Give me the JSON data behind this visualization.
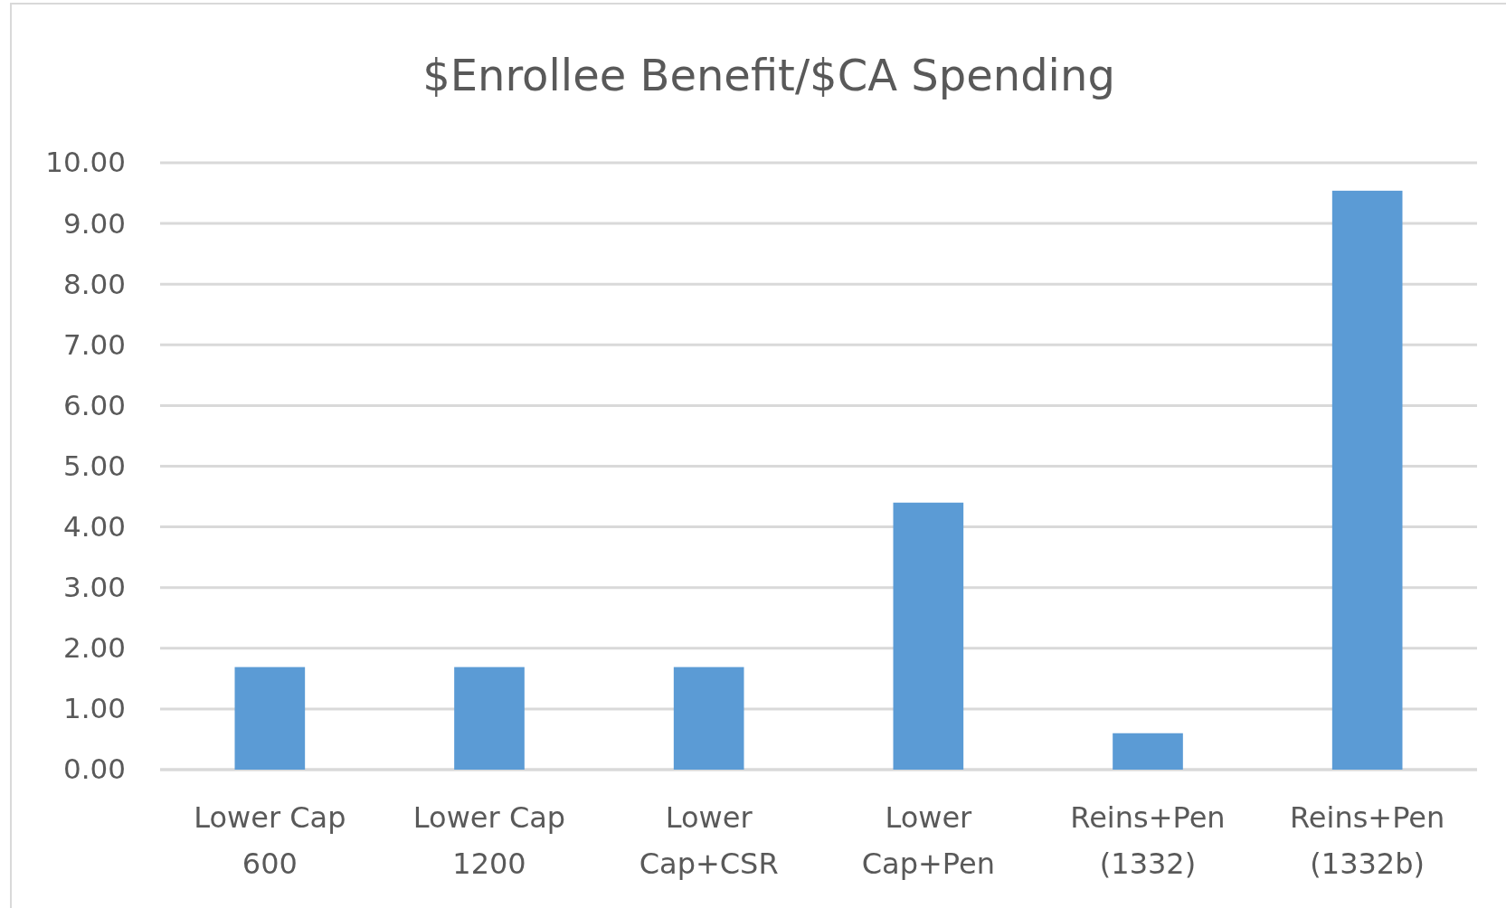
{
  "chart_data": {
    "type": "bar",
    "title": "$Enrollee Benefit/$CA Spending",
    "categories": [
      "Lower Cap 600",
      "Lower Cap 1200",
      "Lower Cap+CSR",
      "Lower Cap+Pen",
      "Reins+Pen (1332)",
      "Reins+Pen (1332b)"
    ],
    "values": [
      1.69,
      1.69,
      1.69,
      4.4,
      0.6,
      9.54
    ],
    "color": "#5b9bd5",
    "ylim": [
      0,
      10
    ],
    "yticks": [
      {
        "value": 0,
        "label": "0.00"
      },
      {
        "value": 1,
        "label": "1.00"
      },
      {
        "value": 2,
        "label": "2.00"
      },
      {
        "value": 3,
        "label": "3.00"
      },
      {
        "value": 4,
        "label": "4.00"
      },
      {
        "value": 5,
        "label": "5.00"
      },
      {
        "value": 6,
        "label": "6.00"
      },
      {
        "value": 7,
        "label": "7.00"
      },
      {
        "value": 8,
        "label": "8.00"
      },
      {
        "value": 9,
        "label": "9.00"
      },
      {
        "value": 10,
        "label": "10.00"
      }
    ],
    "grid": "y"
  }
}
